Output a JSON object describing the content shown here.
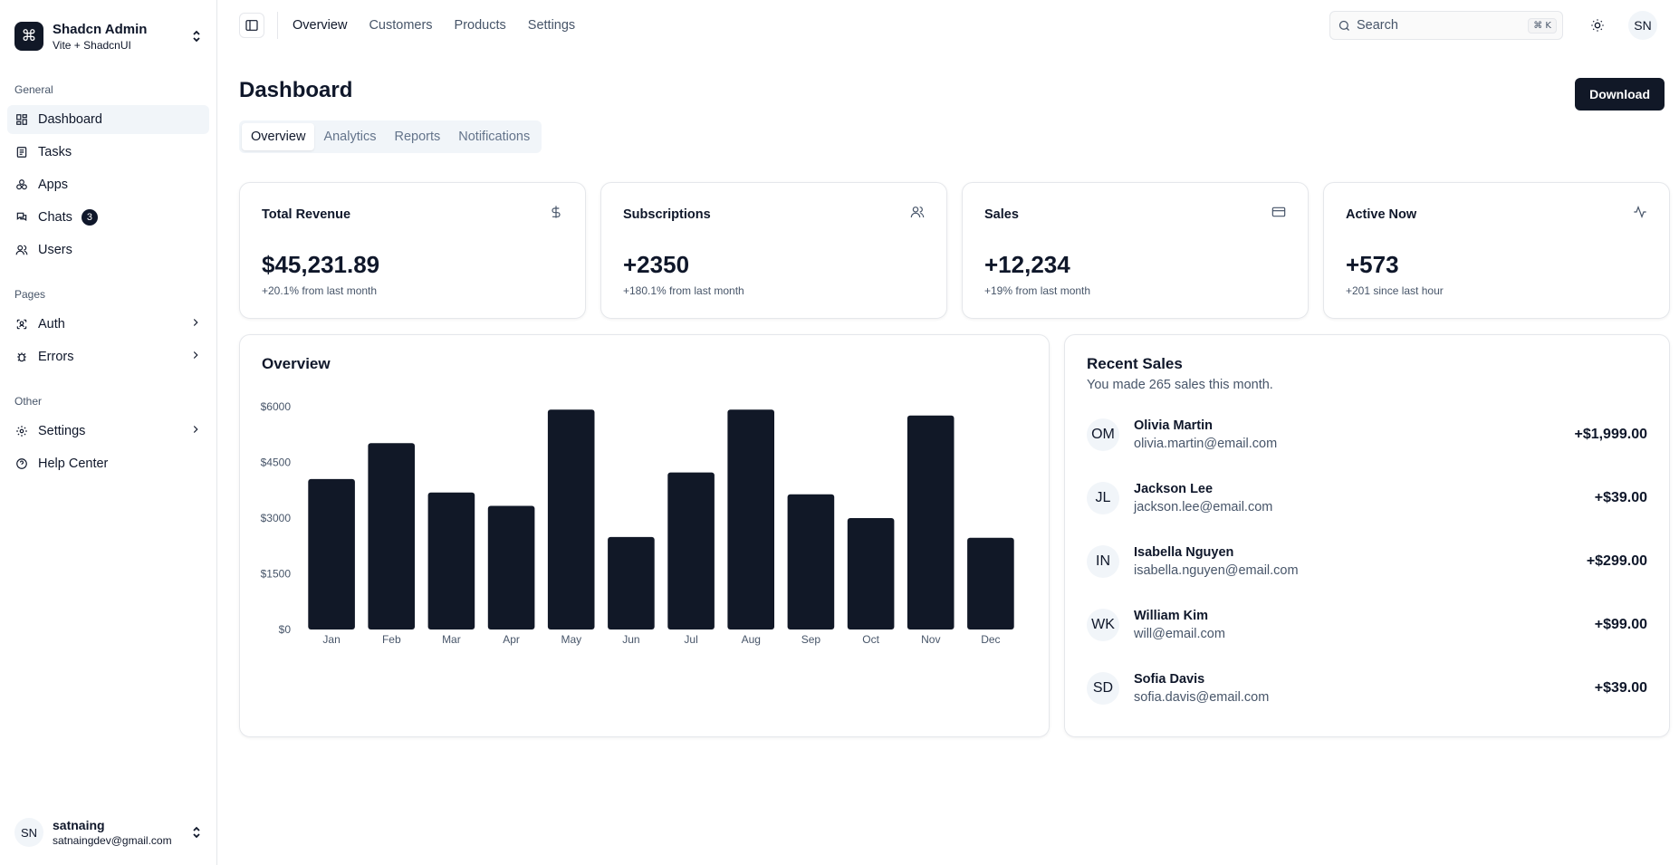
{
  "sidebar": {
    "team": {
      "name": "Shadcn Admin",
      "subtitle": "Vite + ShadcnUI",
      "logo_glyph": "⌘"
    },
    "groups": [
      {
        "label": "General"
      },
      {
        "label": "Pages"
      },
      {
        "label": "Other"
      }
    ],
    "items": {
      "dashboard": "Dashboard",
      "tasks": "Tasks",
      "apps": "Apps",
      "chats": "Chats",
      "chats_badge": "3",
      "users": "Users",
      "auth": "Auth",
      "errors": "Errors",
      "settings": "Settings",
      "help": "Help Center"
    },
    "user": {
      "initials": "SN",
      "name": "satnaing",
      "email": "satnaingdev@gmail.com"
    }
  },
  "topbar": {
    "nav": [
      "Overview",
      "Customers",
      "Products",
      "Settings"
    ],
    "search_placeholder": "Search",
    "search_shortcut": "⌘ K",
    "avatar_initials": "SN"
  },
  "main": {
    "title": "Dashboard",
    "download_label": "Download",
    "tabs": [
      "Overview",
      "Analytics",
      "Reports",
      "Notifications"
    ],
    "stats": [
      {
        "title": "Total Revenue",
        "value": "$45,231.89",
        "sub": "+20.1% from last month",
        "icon": "dollar-icon"
      },
      {
        "title": "Subscriptions",
        "value": "+2350",
        "sub": "+180.1% from last month",
        "icon": "users-icon"
      },
      {
        "title": "Sales",
        "value": "+12,234",
        "sub": "+19% from last month",
        "icon": "credit-card-icon"
      },
      {
        "title": "Active Now",
        "value": "+573",
        "sub": "+201 since last hour",
        "icon": "activity-icon"
      }
    ],
    "overview_title": "Overview",
    "recent_sales": {
      "title": "Recent Sales",
      "description": "You made 265 sales this month.",
      "rows": [
        {
          "initials": "OM",
          "name": "Olivia Martin",
          "email": "olivia.martin@email.com",
          "amount": "+$1,999.00"
        },
        {
          "initials": "JL",
          "name": "Jackson Lee",
          "email": "jackson.lee@email.com",
          "amount": "+$39.00"
        },
        {
          "initials": "IN",
          "name": "Isabella Nguyen",
          "email": "isabella.nguyen@email.com",
          "amount": "+$299.00"
        },
        {
          "initials": "WK",
          "name": "William Kim",
          "email": "will@email.com",
          "amount": "+$99.00"
        },
        {
          "initials": "SD",
          "name": "Sofia Davis",
          "email": "sofia.davis@email.com",
          "amount": "+$39.00"
        }
      ]
    }
  },
  "colors": {
    "bar": "#111827",
    "accent": "#0f172a",
    "muted": "#475569",
    "border": "#e5e7eb"
  },
  "chart_data": {
    "type": "bar",
    "title": "Overview",
    "categories": [
      "Jan",
      "Feb",
      "Mar",
      "Apr",
      "May",
      "Jun",
      "Jul",
      "Aug",
      "Sep",
      "Oct",
      "Nov",
      "Dec"
    ],
    "values": [
      4050,
      5020,
      3690,
      3330,
      5920,
      2490,
      4230,
      5920,
      3640,
      3000,
      5760,
      2470
    ],
    "yticks": [
      "$0",
      "$1500",
      "$3000",
      "$4500",
      "$6000"
    ],
    "ylim": [
      0,
      6000
    ],
    "grid": false
  }
}
